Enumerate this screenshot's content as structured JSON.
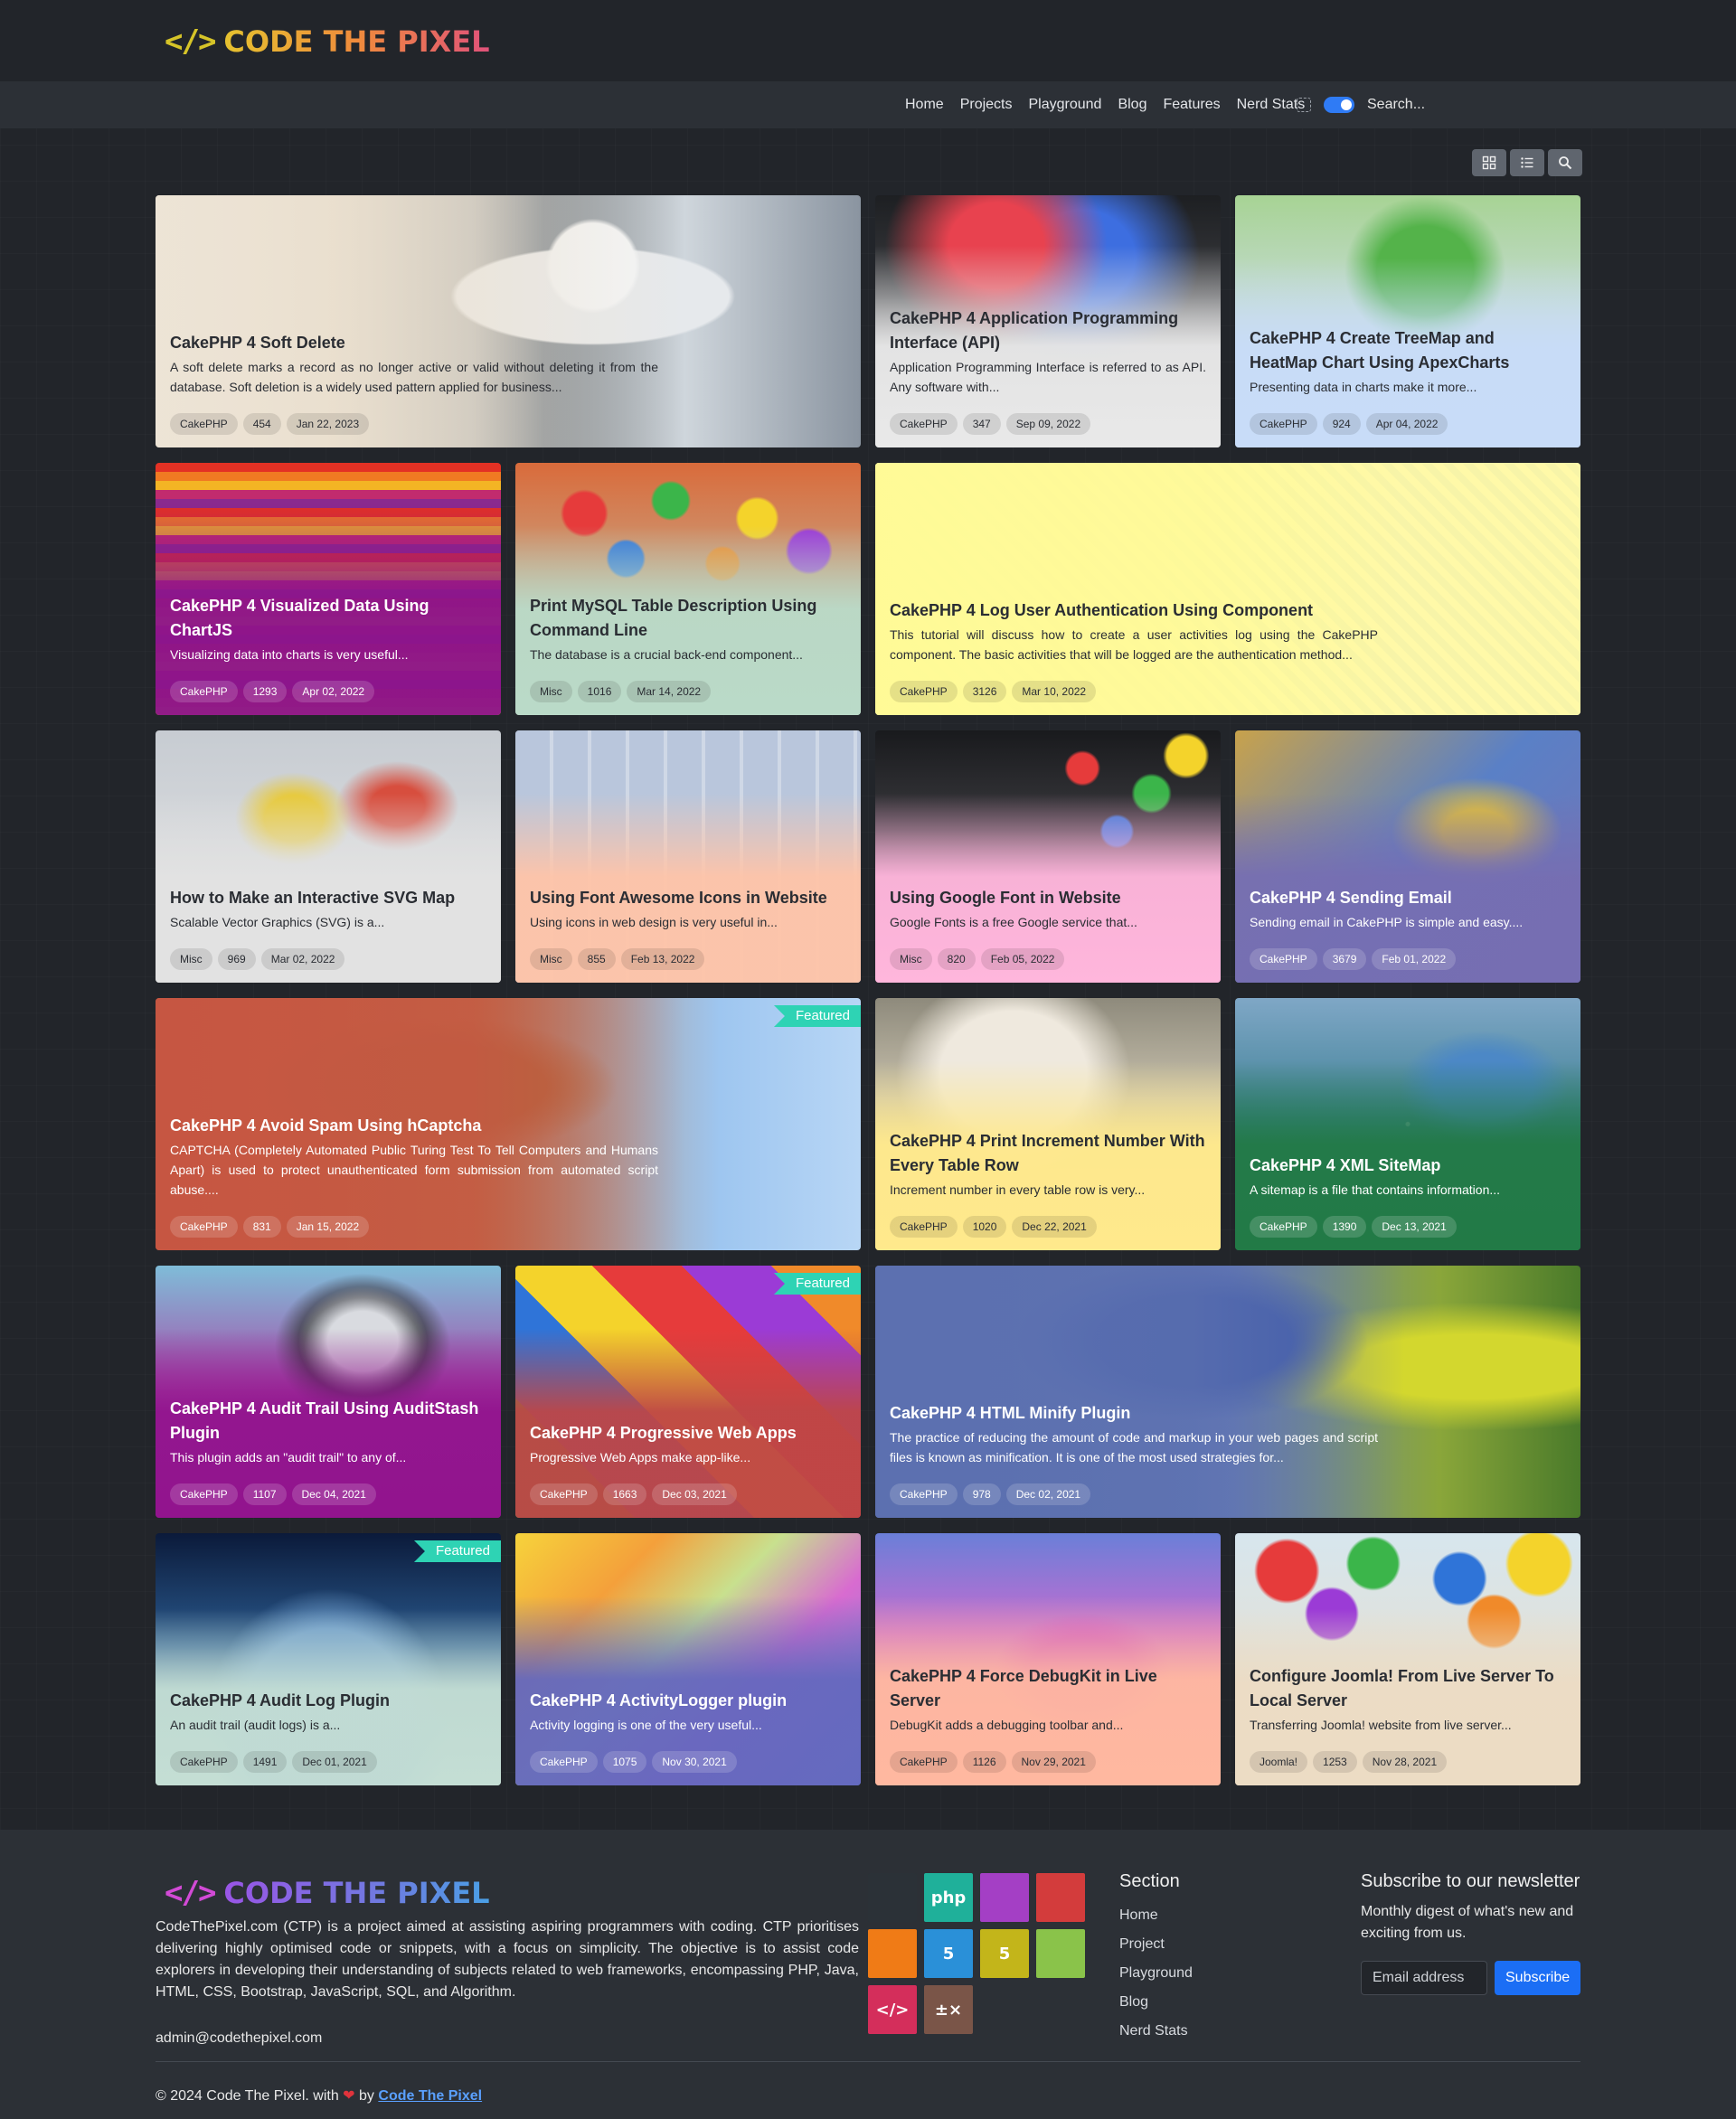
{
  "header": {
    "logo_mark": "</>",
    "logo_text": "CODE THE PIXEL",
    "nav": [
      "Home",
      "Projects",
      "Playground",
      "Blog",
      "Features",
      "Nerd Stats"
    ],
    "search_placeholder": "Search..."
  },
  "cards": [
    {
      "title": "CakePHP 4 Soft Delete",
      "desc": "A soft delete marks a record as no longer active or valid without deleting it from the database. Soft deletion is a widely used pattern applied for business...",
      "cat": "CakePHP",
      "views": "454",
      "date": "Jan 22, 2023",
      "featured": false
    },
    {
      "title": "CakePHP 4 Application Programming Interface (API)",
      "desc": "Application Programming Interface is referred to as API. Any software with...",
      "cat": "CakePHP",
      "views": "347",
      "date": "Sep 09, 2022",
      "featured": false
    },
    {
      "title": "CakePHP 4 Create TreeMap and HeatMap Chart Using ApexCharts",
      "desc": "Presenting data in charts make it more...",
      "cat": "CakePHP",
      "views": "924",
      "date": "Apr 04, 2022",
      "featured": false
    },
    {
      "title": "CakePHP 4 Visualized Data Using ChartJS",
      "desc": "Visualizing data into charts is very useful...",
      "cat": "CakePHP",
      "views": "1293",
      "date": "Apr 02, 2022",
      "featured": false
    },
    {
      "title": "Print MySQL Table Description Using Command Line",
      "desc": "The database is a crucial back-end component...",
      "cat": "Misc",
      "views": "1016",
      "date": "Mar 14, 2022",
      "featured": false
    },
    {
      "title": "CakePHP 4 Log User Authentication Using Component",
      "desc": "This tutorial will discuss how to create a user activities log using the CakePHP component. The basic activities that will be logged are the authentication method...",
      "cat": "CakePHP",
      "views": "3126",
      "date": "Mar 10, 2022",
      "featured": false
    },
    {
      "title": "How to Make an Interactive SVG Map",
      "desc": "Scalable Vector Graphics (SVG) is a...",
      "cat": "Misc",
      "views": "969",
      "date": "Mar 02, 2022",
      "featured": false
    },
    {
      "title": "Using Font Awesome Icons in Website",
      "desc": "Using icons in web design is very useful in...",
      "cat": "Misc",
      "views": "855",
      "date": "Feb 13, 2022",
      "featured": false
    },
    {
      "title": "Using Google Font in Website",
      "desc": "Google Fonts is a free Google service that...",
      "cat": "Misc",
      "views": "820",
      "date": "Feb 05, 2022",
      "featured": false
    },
    {
      "title": "CakePHP 4 Sending Email",
      "desc": "Sending email in CakePHP is simple and easy....",
      "cat": "CakePHP",
      "views": "3679",
      "date": "Feb 01, 2022",
      "featured": false
    },
    {
      "title": "CakePHP 4 Avoid Spam Using hCaptcha",
      "desc": "CAPTCHA (Completely Automated Public Turing Test To Tell Computers and Humans Apart) is used to protect unauthenticated form submission from automated script abuse....",
      "cat": "CakePHP",
      "views": "831",
      "date": "Jan 15, 2022",
      "featured": true
    },
    {
      "title": "CakePHP 4 Print Increment Number With Every Table Row",
      "desc": "Increment number in every table row is very...",
      "cat": "CakePHP",
      "views": "1020",
      "date": "Dec 22, 2021",
      "featured": false
    },
    {
      "title": "CakePHP 4 XML SiteMap",
      "desc": "A sitemap is a file that contains information...",
      "cat": "CakePHP",
      "views": "1390",
      "date": "Dec 13, 2021",
      "featured": false
    },
    {
      "title": "CakePHP 4 Audit Trail Using AuditStash Plugin",
      "desc": "This plugin adds an \"audit trail\" to any of...",
      "cat": "CakePHP",
      "views": "1107",
      "date": "Dec 04, 2021",
      "featured": false
    },
    {
      "title": "CakePHP 4 Progressive Web Apps",
      "desc": "Progressive Web Apps make app-like...",
      "cat": "CakePHP",
      "views": "1663",
      "date": "Dec 03, 2021",
      "featured": true
    },
    {
      "title": "CakePHP 4 HTML Minify Plugin",
      "desc": "The practice of reducing the amount of code and markup in your web pages and script files is known as minification. It is one of the most used strategies for...",
      "cat": "CakePHP",
      "views": "978",
      "date": "Dec 02, 2021",
      "featured": false
    },
    {
      "title": "CakePHP 4 Audit Log Plugin",
      "desc": "An audit trail (audit logs) is a...",
      "cat": "CakePHP",
      "views": "1491",
      "date": "Dec 01, 2021",
      "featured": true
    },
    {
      "title": "CakePHP 4 ActivityLogger plugin",
      "desc": "Activity logging is one of the very useful...",
      "cat": "CakePHP",
      "views": "1075",
      "date": "Nov 30, 2021",
      "featured": false
    },
    {
      "title": "CakePHP 4 Force DebugKit in Live Server",
      "desc": "DebugKit adds a debugging toolbar and...",
      "cat": "CakePHP",
      "views": "1126",
      "date": "Nov 29, 2021",
      "featured": false
    },
    {
      "title": "Configure Joomla! From Live Server To Local Server",
      "desc": "Transferring Joomla! website from live server...",
      "cat": "Joomla!",
      "views": "1253",
      "date": "Nov 28, 2021",
      "featured": false
    }
  ],
  "featured_label": "Featured",
  "footer": {
    "description": "CodeThePixel.com (CTP) is a project aimed at assisting aspiring programmers with coding. CTP prioritises delivering highly optimised code or snippets, with a focus on simplicity. The objective is to assist code explorers in developing their understanding of subjects related to web frameworks, encompassing PHP, Java, HTML, CSS, Bootstrap, JavaScript, SQL, and Algorithm.",
    "email": "admin@codethepixel.com",
    "section_title": "Section",
    "section_links": [
      "Home",
      "Project",
      "Playground",
      "Blog",
      "Nerd Stats"
    ],
    "newsletter_title": "Subscribe to our newsletter",
    "newsletter_desc": "Monthly digest of what's new and exciting from us.",
    "email_placeholder": "Email address",
    "subscribe_label": "Subscribe",
    "copyright_prefix": "© 2024 Code The Pixel. with",
    "copyright_by": "by",
    "copyright_link": "Code The Pixel",
    "tech_icons": [
      {
        "name": "github-icon",
        "glyph": "",
        "color": "#2b3137"
      },
      {
        "name": "php-icon",
        "glyph": "php",
        "color": "#1fb09a"
      },
      {
        "name": "vscode-icon",
        "glyph": "",
        "color": "#a43fc5"
      },
      {
        "name": "cakephp-icon",
        "glyph": "",
        "color": "#d33c3c"
      },
      {
        "name": "xampp-icon",
        "glyph": "",
        "color": "#f07b16"
      },
      {
        "name": "html5-icon",
        "glyph": "5",
        "color": "#2a90d8"
      },
      {
        "name": "css3-icon",
        "glyph": "5",
        "color": "#c3b51a"
      },
      {
        "name": "laragon-icon",
        "glyph": "",
        "color": "#8ac34a"
      },
      {
        "name": "code-icon",
        "glyph": "</>",
        "color": "#d42e5b"
      },
      {
        "name": "calculator-icon",
        "glyph": "±×",
        "color": "#7a5548"
      }
    ]
  }
}
